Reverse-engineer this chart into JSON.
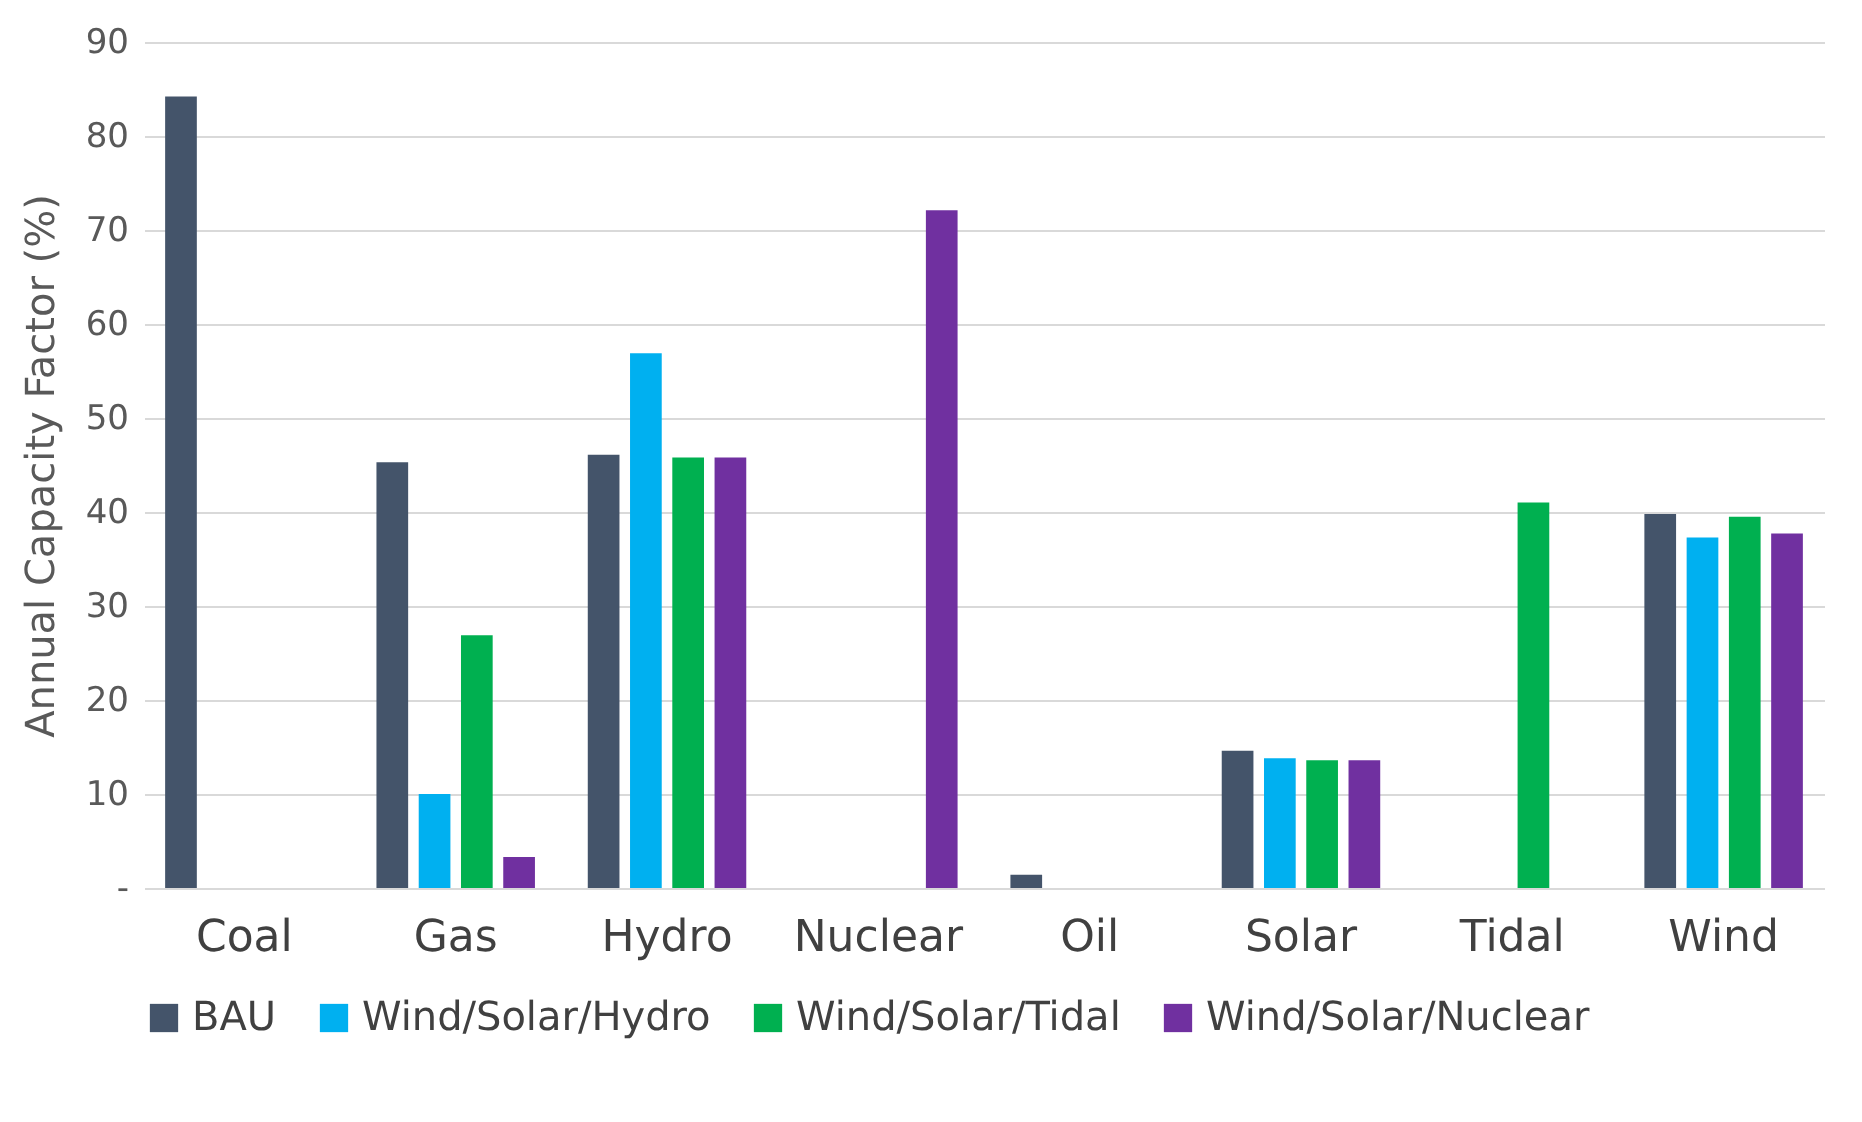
{
  "chart_data": {
    "type": "bar",
    "ylabel": "Annual Capacity Factor (%)",
    "categories": [
      "Coal",
      "Gas",
      "Hydro",
      "Nuclear",
      "Oil",
      "Solar",
      "Tidal",
      "Wind"
    ],
    "series": [
      {
        "name": "BAU",
        "color": "#44546a",
        "values": [
          84.2,
          45.3,
          46.1,
          null,
          1.4,
          14.6,
          null,
          39.8
        ]
      },
      {
        "name": "Wind/Solar/Hydro",
        "color": "#00b0f0",
        "values": [
          null,
          10.0,
          56.9,
          null,
          null,
          13.8,
          null,
          37.3
        ]
      },
      {
        "name": "Wind/Solar/Tidal",
        "color": "#00b050",
        "values": [
          null,
          26.9,
          45.8,
          null,
          null,
          13.6,
          41.0,
          39.5
        ]
      },
      {
        "name": "Wind/Solar/Nuclear",
        "color": "#7030a0",
        "values": [
          null,
          3.3,
          45.8,
          72.1,
          null,
          13.6,
          null,
          37.7
        ]
      }
    ],
    "ylim": [
      0,
      90
    ],
    "yticks": [
      {
        "value": 0,
        "label": "-"
      },
      10,
      20,
      30,
      40,
      50,
      60,
      70,
      80,
      90
    ],
    "grid": "y",
    "legend": "bottom"
  }
}
